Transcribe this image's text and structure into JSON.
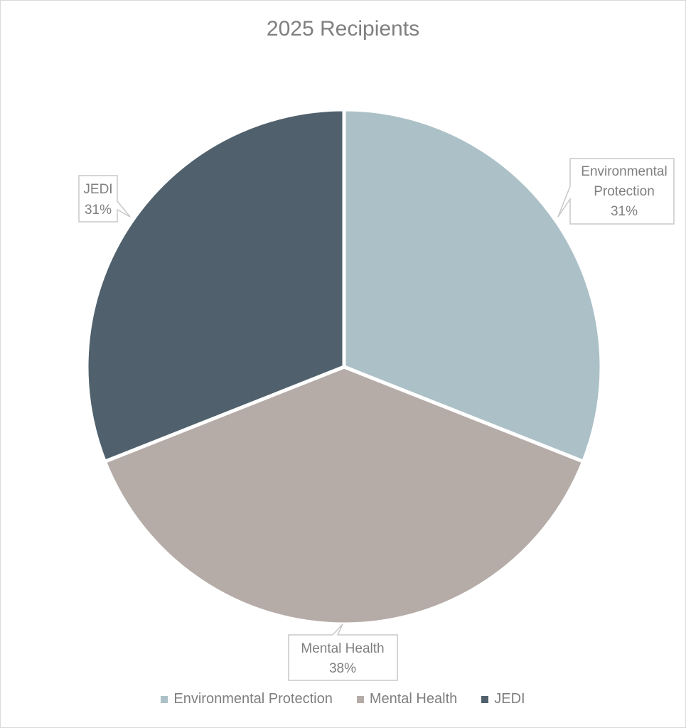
{
  "chart_data": {
    "type": "pie",
    "title": "2025 Recipients",
    "categories": [
      "Environmental Protection",
      "Mental Health",
      "JEDI"
    ],
    "values": [
      31,
      38,
      31
    ],
    "unit": "%",
    "colors": [
      "#acc0c7",
      "#b5aca8",
      "#50616d"
    ],
    "data_labels": [
      {
        "lines": [
          "Environmental",
          "Protection",
          "31%"
        ]
      },
      {
        "lines": [
          "Mental Health",
          "38%"
        ]
      },
      {
        "lines": [
          "JEDI",
          "31%"
        ]
      }
    ],
    "start_angle_deg": 0,
    "direction": "clockwise",
    "legend_position": "bottom"
  },
  "legend": {
    "items": [
      {
        "label": "Environmental Protection",
        "color": "#acc0c7"
      },
      {
        "label": "Mental Health",
        "color": "#b5aca8"
      },
      {
        "label": "JEDI",
        "color": "#50616d"
      }
    ]
  }
}
